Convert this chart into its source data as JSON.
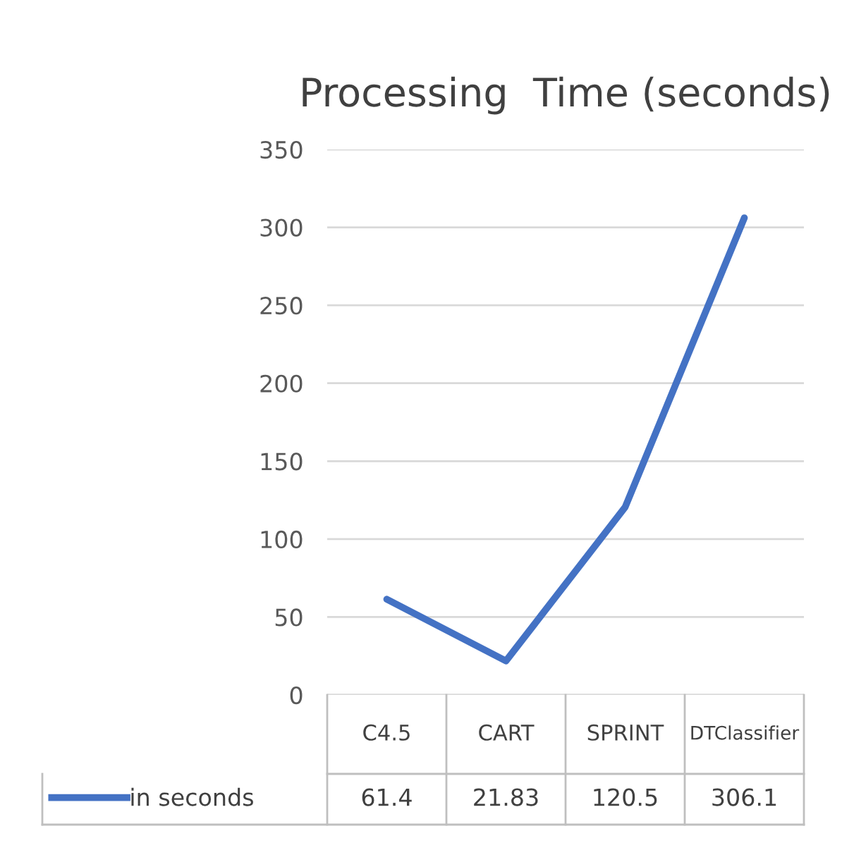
{
  "chart_data": {
    "type": "line",
    "title": "Processing  Time (seconds)",
    "categories": [
      "C4.5",
      "CART",
      "SPRINT",
      "DTClassifier"
    ],
    "series": [
      {
        "name": "in seconds",
        "color": "#4472c4",
        "values": [
          61.4,
          21.83,
          120.5,
          306.1
        ]
      }
    ],
    "ylim": [
      0,
      350
    ],
    "yticks": [
      0,
      50,
      100,
      150,
      200,
      250,
      300,
      350
    ],
    "grid": "y",
    "legend": "bottom",
    "data_labels": true,
    "marker": "none",
    "line_style": "solid"
  }
}
